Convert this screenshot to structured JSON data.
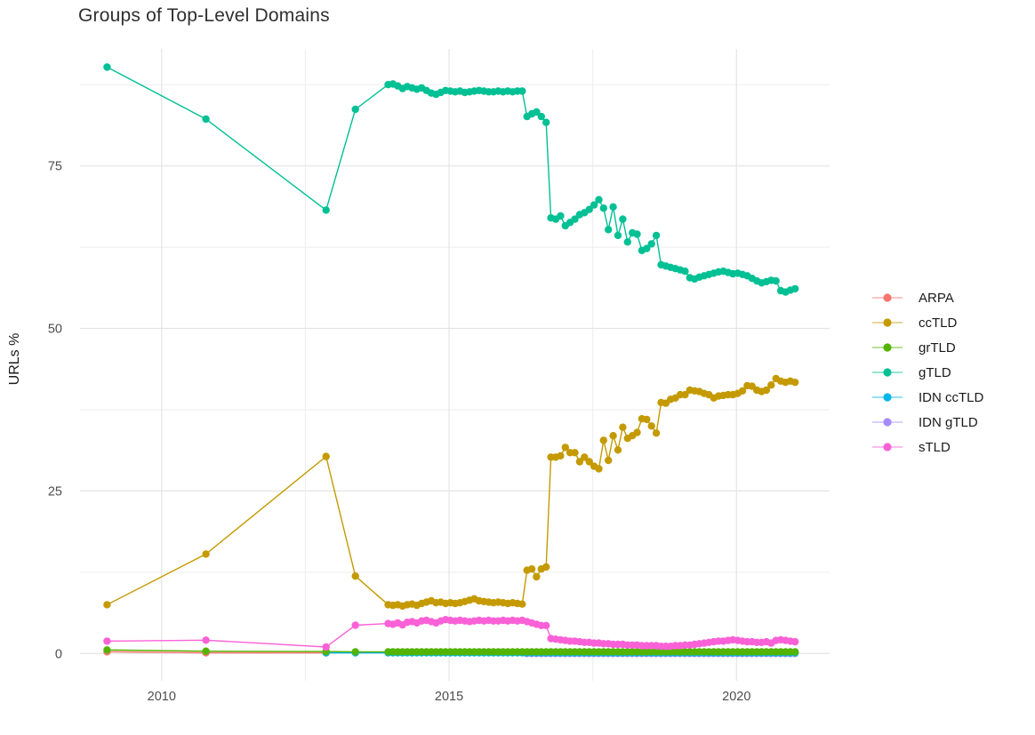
{
  "page": {
    "background": "#FFFFFF"
  },
  "chart_data": {
    "type": "line",
    "title": "Groups of Top-Level Domains",
    "xlabel": "",
    "ylabel": "URLs %",
    "x_ticks": [
      2010,
      2015,
      2020
    ],
    "x_minor_ticks": [
      2012.5,
      2017.5
    ],
    "y_ticks": [
      0,
      25,
      50,
      75
    ],
    "y_minor_ticks": [
      12.5,
      37.5,
      62.5,
      87.5
    ],
    "xlim": [
      2008.58,
      2021.62
    ],
    "ylim": [
      -4.2,
      93.0
    ],
    "grid": true,
    "legend_position": "right",
    "colors": {
      "grid_major": "#E4E4E4",
      "grid_minor": "#EDEDED",
      "axis_text": "#4D4D4D"
    },
    "draw_order": [
      "ARPA",
      "IDN gTLD",
      "IDN ccTLD",
      "grTLD",
      "sTLD",
      "ccTLD",
      "gTLD"
    ],
    "series": [
      {
        "name": "ARPA",
        "color": "#F8766D",
        "points": [
          [
            2009.05,
            0.25
          ],
          [
            2010.77,
            0.1
          ],
          [
            2012.86,
            0.1
          ]
        ]
      },
      {
        "name": "ccTLD",
        "color": "#C49A00",
        "points": [
          [
            2009.05,
            7.5
          ],
          [
            2010.77,
            15.3
          ],
          [
            2012.86,
            30.3
          ],
          [
            2013.37,
            11.9
          ]
        ],
        "dense": {
          "x_start": 2013.94,
          "x_step": 0.0833,
          "values": [
            7.5,
            7.4,
            7.5,
            7.3,
            7.5,
            7.6,
            7.4,
            7.7,
            7.9,
            8.1,
            7.8,
            7.9,
            7.7,
            7.8,
            7.7,
            7.8,
            8.0,
            8.2,
            8.4,
            8.1,
            8.0,
            7.9,
            7.8,
            7.9,
            7.8,
            7.7,
            7.8,
            7.7,
            7.6,
            12.8,
            13.0,
            11.8,
            13.0,
            13.3,
            30.2,
            30.2,
            30.4,
            31.7,
            30.9,
            30.9,
            29.5,
            30.2,
            29.5,
            28.8,
            28.4,
            32.8,
            29.7,
            33.5,
            31.3,
            34.8,
            33.1,
            33.5,
            34.0,
            36.1,
            36.0,
            35.0,
            33.9,
            38.6,
            38.5,
            39.1,
            39.3,
            39.8,
            39.8,
            40.5,
            40.4,
            40.3,
            40.0,
            39.8,
            39.3,
            39.6,
            39.7,
            39.8,
            39.8,
            40.0,
            40.4,
            41.2,
            41.1,
            40.5,
            40.3,
            40.5,
            41.3,
            42.3,
            41.9,
            41.7,
            41.9,
            41.7
          ]
        }
      },
      {
        "name": "grTLD",
        "color": "#53B400",
        "points": [
          [
            2009.05,
            0.55
          ],
          [
            2010.77,
            0.35
          ],
          [
            2012.86,
            0.3
          ],
          [
            2013.37,
            0.25
          ]
        ],
        "dense": {
          "x_start": 2013.94,
          "x_step": 0.0833,
          "const": 0.25,
          "count": 86
        }
      },
      {
        "name": "gTLD",
        "color": "#00C094",
        "points": [
          [
            2009.05,
            90.2
          ],
          [
            2010.77,
            82.2
          ],
          [
            2012.86,
            68.2
          ],
          [
            2013.37,
            83.7
          ]
        ],
        "dense": {
          "x_start": 2013.94,
          "x_step": 0.0833,
          "values": [
            87.5,
            87.6,
            87.3,
            86.9,
            87.2,
            87.0,
            86.8,
            87.0,
            86.6,
            86.2,
            86.0,
            86.3,
            86.6,
            86.5,
            86.4,
            86.5,
            86.3,
            86.4,
            86.5,
            86.6,
            86.5,
            86.4,
            86.4,
            86.5,
            86.4,
            86.5,
            86.4,
            86.5,
            86.5,
            82.6,
            83.0,
            83.3,
            82.6,
            81.7,
            67.0,
            66.8,
            67.3,
            65.8,
            66.3,
            66.8,
            67.5,
            67.8,
            68.3,
            69.0,
            69.8,
            68.5,
            65.2,
            68.7,
            64.3,
            66.8,
            63.3,
            64.7,
            64.5,
            62.0,
            62.3,
            63.0,
            64.3,
            59.8,
            59.6,
            59.4,
            59.2,
            59.0,
            58.8,
            57.8,
            57.6,
            57.9,
            58.1,
            58.3,
            58.5,
            58.7,
            58.8,
            58.6,
            58.4,
            58.5,
            58.3,
            58.1,
            57.7,
            57.3,
            57.0,
            57.2,
            57.4,
            57.3,
            55.8,
            55.6,
            55.9,
            56.1
          ]
        }
      },
      {
        "name": "IDN ccTLD",
        "color": "#00B6EB",
        "points": [
          [
            2012.86,
            0.1
          ],
          [
            2013.37,
            0.1
          ]
        ],
        "dense": {
          "x_start": 2013.94,
          "x_step": 0.0833,
          "const": 0.1,
          "count": 86
        }
      },
      {
        "name": "IDN gTLD",
        "color": "#A58AFF",
        "points": [],
        "dense": {
          "x_start": 2016.35,
          "x_step": 0.0833,
          "const": 0.0,
          "count": 57
        }
      },
      {
        "name": "sTLD",
        "color": "#FB61D7",
        "points": [
          [
            2009.05,
            1.9
          ],
          [
            2010.77,
            2.05
          ],
          [
            2012.86,
            1.0
          ],
          [
            2013.37,
            4.35
          ]
        ],
        "dense": {
          "x_start": 2013.94,
          "x_step": 0.0833,
          "values": [
            4.6,
            4.5,
            4.7,
            4.4,
            4.8,
            4.9,
            4.7,
            5.0,
            5.1,
            4.9,
            4.7,
            5.0,
            5.2,
            5.1,
            5.0,
            5.1,
            5.0,
            4.9,
            5.0,
            5.1,
            5.0,
            5.1,
            5.0,
            5.0,
            5.1,
            5.0,
            5.1,
            5.0,
            5.1,
            4.9,
            4.7,
            4.5,
            4.3,
            4.3,
            2.3,
            2.2,
            2.1,
            2.0,
            1.9,
            1.9,
            1.8,
            1.7,
            1.7,
            1.6,
            1.6,
            1.5,
            1.5,
            1.4,
            1.4,
            1.4,
            1.3,
            1.3,
            1.3,
            1.2,
            1.2,
            1.2,
            1.2,
            1.1,
            1.1,
            1.1,
            1.2,
            1.2,
            1.3,
            1.3,
            1.4,
            1.5,
            1.6,
            1.7,
            1.8,
            1.9,
            1.9,
            2.0,
            2.1,
            2.0,
            1.9,
            1.8,
            1.8,
            1.7,
            1.7,
            1.8,
            1.6,
            2.0,
            2.1,
            2.0,
            1.9,
            1.8
          ]
        }
      }
    ]
  }
}
